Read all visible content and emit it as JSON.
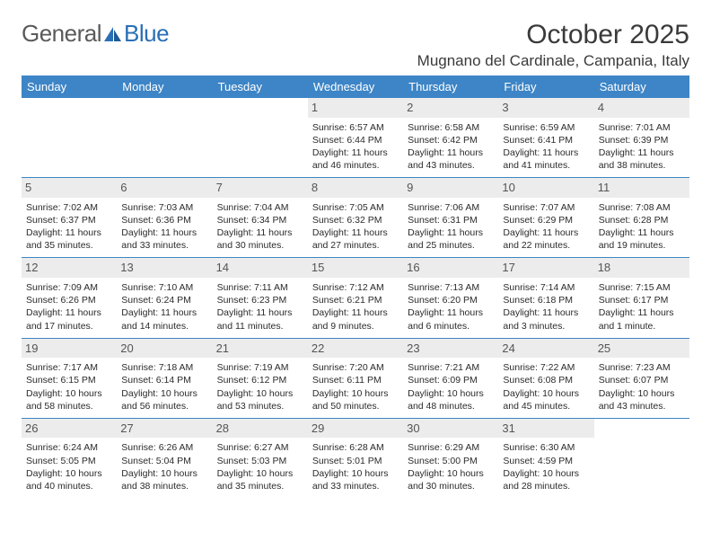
{
  "brand": {
    "part1": "General",
    "part2": "Blue"
  },
  "title": "October 2025",
  "location": "Mugnano del Cardinale, Campania, Italy",
  "colors": {
    "header_bg": "#3d85c6",
    "header_text": "#ffffff",
    "daynum_bg": "#ececec",
    "daynum_text": "#555555",
    "rule": "#3d85c6",
    "body_text": "#2b2b2b",
    "brand_gray": "#5a5a5a",
    "brand_blue": "#2a6fb5"
  },
  "weekdays": [
    "Sunday",
    "Monday",
    "Tuesday",
    "Wednesday",
    "Thursday",
    "Friday",
    "Saturday"
  ],
  "weeks": [
    [
      {
        "n": "",
        "sr": "",
        "ss": "",
        "dl": ""
      },
      {
        "n": "",
        "sr": "",
        "ss": "",
        "dl": ""
      },
      {
        "n": "",
        "sr": "",
        "ss": "",
        "dl": ""
      },
      {
        "n": "1",
        "sr": "Sunrise: 6:57 AM",
        "ss": "Sunset: 6:44 PM",
        "dl": "Daylight: 11 hours and 46 minutes."
      },
      {
        "n": "2",
        "sr": "Sunrise: 6:58 AM",
        "ss": "Sunset: 6:42 PM",
        "dl": "Daylight: 11 hours and 43 minutes."
      },
      {
        "n": "3",
        "sr": "Sunrise: 6:59 AM",
        "ss": "Sunset: 6:41 PM",
        "dl": "Daylight: 11 hours and 41 minutes."
      },
      {
        "n": "4",
        "sr": "Sunrise: 7:01 AM",
        "ss": "Sunset: 6:39 PM",
        "dl": "Daylight: 11 hours and 38 minutes."
      }
    ],
    [
      {
        "n": "5",
        "sr": "Sunrise: 7:02 AM",
        "ss": "Sunset: 6:37 PM",
        "dl": "Daylight: 11 hours and 35 minutes."
      },
      {
        "n": "6",
        "sr": "Sunrise: 7:03 AM",
        "ss": "Sunset: 6:36 PM",
        "dl": "Daylight: 11 hours and 33 minutes."
      },
      {
        "n": "7",
        "sr": "Sunrise: 7:04 AM",
        "ss": "Sunset: 6:34 PM",
        "dl": "Daylight: 11 hours and 30 minutes."
      },
      {
        "n": "8",
        "sr": "Sunrise: 7:05 AM",
        "ss": "Sunset: 6:32 PM",
        "dl": "Daylight: 11 hours and 27 minutes."
      },
      {
        "n": "9",
        "sr": "Sunrise: 7:06 AM",
        "ss": "Sunset: 6:31 PM",
        "dl": "Daylight: 11 hours and 25 minutes."
      },
      {
        "n": "10",
        "sr": "Sunrise: 7:07 AM",
        "ss": "Sunset: 6:29 PM",
        "dl": "Daylight: 11 hours and 22 minutes."
      },
      {
        "n": "11",
        "sr": "Sunrise: 7:08 AM",
        "ss": "Sunset: 6:28 PM",
        "dl": "Daylight: 11 hours and 19 minutes."
      }
    ],
    [
      {
        "n": "12",
        "sr": "Sunrise: 7:09 AM",
        "ss": "Sunset: 6:26 PM",
        "dl": "Daylight: 11 hours and 17 minutes."
      },
      {
        "n": "13",
        "sr": "Sunrise: 7:10 AM",
        "ss": "Sunset: 6:24 PM",
        "dl": "Daylight: 11 hours and 14 minutes."
      },
      {
        "n": "14",
        "sr": "Sunrise: 7:11 AM",
        "ss": "Sunset: 6:23 PM",
        "dl": "Daylight: 11 hours and 11 minutes."
      },
      {
        "n": "15",
        "sr": "Sunrise: 7:12 AM",
        "ss": "Sunset: 6:21 PM",
        "dl": "Daylight: 11 hours and 9 minutes."
      },
      {
        "n": "16",
        "sr": "Sunrise: 7:13 AM",
        "ss": "Sunset: 6:20 PM",
        "dl": "Daylight: 11 hours and 6 minutes."
      },
      {
        "n": "17",
        "sr": "Sunrise: 7:14 AM",
        "ss": "Sunset: 6:18 PM",
        "dl": "Daylight: 11 hours and 3 minutes."
      },
      {
        "n": "18",
        "sr": "Sunrise: 7:15 AM",
        "ss": "Sunset: 6:17 PM",
        "dl": "Daylight: 11 hours and 1 minute."
      }
    ],
    [
      {
        "n": "19",
        "sr": "Sunrise: 7:17 AM",
        "ss": "Sunset: 6:15 PM",
        "dl": "Daylight: 10 hours and 58 minutes."
      },
      {
        "n": "20",
        "sr": "Sunrise: 7:18 AM",
        "ss": "Sunset: 6:14 PM",
        "dl": "Daylight: 10 hours and 56 minutes."
      },
      {
        "n": "21",
        "sr": "Sunrise: 7:19 AM",
        "ss": "Sunset: 6:12 PM",
        "dl": "Daylight: 10 hours and 53 minutes."
      },
      {
        "n": "22",
        "sr": "Sunrise: 7:20 AM",
        "ss": "Sunset: 6:11 PM",
        "dl": "Daylight: 10 hours and 50 minutes."
      },
      {
        "n": "23",
        "sr": "Sunrise: 7:21 AM",
        "ss": "Sunset: 6:09 PM",
        "dl": "Daylight: 10 hours and 48 minutes."
      },
      {
        "n": "24",
        "sr": "Sunrise: 7:22 AM",
        "ss": "Sunset: 6:08 PM",
        "dl": "Daylight: 10 hours and 45 minutes."
      },
      {
        "n": "25",
        "sr": "Sunrise: 7:23 AM",
        "ss": "Sunset: 6:07 PM",
        "dl": "Daylight: 10 hours and 43 minutes."
      }
    ],
    [
      {
        "n": "26",
        "sr": "Sunrise: 6:24 AM",
        "ss": "Sunset: 5:05 PM",
        "dl": "Daylight: 10 hours and 40 minutes."
      },
      {
        "n": "27",
        "sr": "Sunrise: 6:26 AM",
        "ss": "Sunset: 5:04 PM",
        "dl": "Daylight: 10 hours and 38 minutes."
      },
      {
        "n": "28",
        "sr": "Sunrise: 6:27 AM",
        "ss": "Sunset: 5:03 PM",
        "dl": "Daylight: 10 hours and 35 minutes."
      },
      {
        "n": "29",
        "sr": "Sunrise: 6:28 AM",
        "ss": "Sunset: 5:01 PM",
        "dl": "Daylight: 10 hours and 33 minutes."
      },
      {
        "n": "30",
        "sr": "Sunrise: 6:29 AM",
        "ss": "Sunset: 5:00 PM",
        "dl": "Daylight: 10 hours and 30 minutes."
      },
      {
        "n": "31",
        "sr": "Sunrise: 6:30 AM",
        "ss": "Sunset: 4:59 PM",
        "dl": "Daylight: 10 hours and 28 minutes."
      },
      {
        "n": "",
        "sr": "",
        "ss": "",
        "dl": ""
      }
    ]
  ]
}
